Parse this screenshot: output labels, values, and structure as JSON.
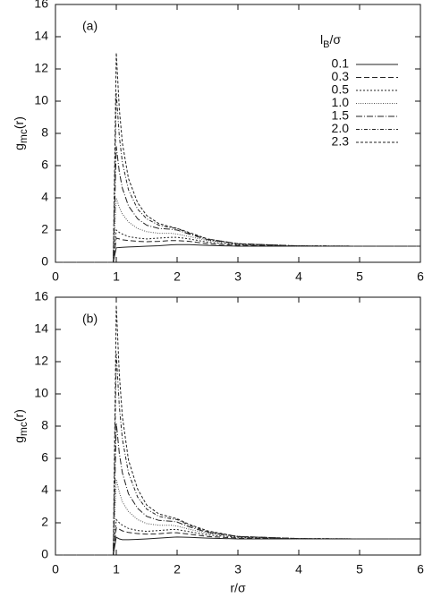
{
  "chart_data": [
    {
      "type": "line",
      "annotation": "(a)",
      "y_label": {
        "base": "g",
        "sub": "mc",
        "rest": "(r)"
      },
      "legend_title": {
        "base": "l",
        "sub": "B",
        "rest": "/σ"
      },
      "legend": "upper right",
      "xlim": [
        0,
        6
      ],
      "ylim": [
        0,
        16
      ],
      "xticks": [
        0,
        1,
        2,
        3,
        4,
        5,
        6
      ],
      "yticks": [
        0,
        2,
        4,
        6,
        8,
        10,
        12,
        14,
        16
      ],
      "x": [
        0,
        0.95,
        1.0,
        1.05,
        1.1,
        1.2,
        1.35,
        1.5,
        1.7,
        1.9,
        2.0,
        2.2,
        2.5,
        3.0,
        4.0,
        5.0,
        6.0
      ],
      "series": [
        {
          "name": "0.1",
          "color": "#222222",
          "dash": "none",
          "values": [
            0,
            0,
            0.9,
            0.92,
            0.93,
            0.95,
            0.97,
            1.0,
            1.03,
            1.08,
            1.1,
            1.1,
            1.05,
            1.0,
            1.0,
            1.0,
            1.0
          ]
        },
        {
          "name": "0.3",
          "color": "#222222",
          "dash": "6,3",
          "values": [
            0,
            0,
            1.5,
            1.45,
            1.4,
            1.35,
            1.3,
            1.28,
            1.3,
            1.35,
            1.35,
            1.3,
            1.15,
            1.05,
            1.0,
            1.0,
            1.0
          ]
        },
        {
          "name": "0.5",
          "color": "#222222",
          "dash": "2,2",
          "values": [
            0,
            0,
            2.0,
            1.85,
            1.75,
            1.6,
            1.5,
            1.45,
            1.5,
            1.55,
            1.55,
            1.45,
            1.25,
            1.1,
            1.0,
            1.0,
            1.0
          ]
        },
        {
          "name": "1.0",
          "color": "#555555",
          "dash": "1,1.5",
          "values": [
            0,
            0,
            4.0,
            3.4,
            3.0,
            2.5,
            2.1,
            1.9,
            1.8,
            1.8,
            1.75,
            1.6,
            1.35,
            1.15,
            1.0,
            1.0,
            1.0
          ]
        },
        {
          "name": "1.5",
          "color": "#222222",
          "dash": "7,2,1,2",
          "values": [
            0,
            0,
            7.2,
            5.6,
            4.6,
            3.5,
            2.7,
            2.3,
            2.1,
            2.05,
            2.0,
            1.75,
            1.4,
            1.15,
            1.02,
            1.0,
            1.0
          ]
        },
        {
          "name": "2.0",
          "color": "#222222",
          "dash": "4,2,1,2",
          "values": [
            0,
            0,
            10.5,
            7.8,
            6.2,
            4.5,
            3.3,
            2.7,
            2.3,
            2.15,
            2.1,
            1.8,
            1.45,
            1.15,
            1.02,
            1.0,
            1.0
          ]
        },
        {
          "name": "2.3",
          "color": "#222222",
          "dash": "3,2",
          "values": [
            0,
            0,
            13.0,
            9.5,
            7.4,
            5.2,
            3.7,
            2.9,
            2.4,
            2.2,
            2.1,
            1.85,
            1.45,
            1.15,
            1.02,
            1.0,
            1.0
          ]
        }
      ]
    },
    {
      "type": "line",
      "annotation": "(b)",
      "y_label": {
        "base": "g",
        "sub": "mc",
        "rest": "(r)"
      },
      "x_label": "r/σ",
      "xlim": [
        0,
        6
      ],
      "ylim": [
        0,
        16
      ],
      "xticks": [
        0,
        1,
        2,
        3,
        4,
        5,
        6
      ],
      "yticks": [
        0,
        2,
        4,
        6,
        8,
        10,
        12,
        14,
        16
      ],
      "x": [
        0,
        0.95,
        1.0,
        1.05,
        1.1,
        1.2,
        1.35,
        1.5,
        1.7,
        1.9,
        2.0,
        2.2,
        2.5,
        3.0,
        4.0,
        5.0,
        6.0
      ],
      "series": [
        {
          "color": "#222222",
          "dash": "none",
          "values": [
            0,
            0,
            1.1,
            1.0,
            0.95,
            0.95,
            0.97,
            1.0,
            1.05,
            1.1,
            1.12,
            1.1,
            1.05,
            1.0,
            1.0,
            1.0,
            1.0
          ]
        },
        {
          "color": "#222222",
          "dash": "6,3",
          "values": [
            0,
            0,
            1.7,
            1.6,
            1.5,
            1.4,
            1.33,
            1.3,
            1.32,
            1.38,
            1.38,
            1.3,
            1.15,
            1.05,
            1.0,
            1.0,
            1.0
          ]
        },
        {
          "color": "#222222",
          "dash": "2,2",
          "values": [
            0,
            0,
            2.2,
            2.0,
            1.85,
            1.65,
            1.52,
            1.47,
            1.52,
            1.58,
            1.58,
            1.45,
            1.25,
            1.1,
            1.0,
            1.0,
            1.0
          ]
        },
        {
          "color": "#555555",
          "dash": "1,1.5",
          "values": [
            0,
            0,
            4.7,
            3.9,
            3.3,
            2.7,
            2.2,
            1.95,
            1.85,
            1.85,
            1.8,
            1.6,
            1.35,
            1.15,
            1.0,
            1.0,
            1.0
          ]
        },
        {
          "color": "#222222",
          "dash": "7,2,1,2",
          "values": [
            0,
            0,
            8.2,
            6.3,
            5.1,
            3.8,
            2.9,
            2.4,
            2.15,
            2.1,
            2.05,
            1.75,
            1.4,
            1.15,
            1.02,
            1.0,
            1.0
          ]
        },
        {
          "color": "#222222",
          "dash": "4,2,1,2",
          "values": [
            0,
            0,
            12.5,
            9.2,
            7.2,
            5.1,
            3.6,
            2.85,
            2.4,
            2.25,
            2.2,
            1.85,
            1.45,
            1.15,
            1.02,
            1.0,
            1.0
          ]
        },
        {
          "color": "#222222",
          "dash": "3,2",
          "values": [
            0,
            0,
            15.5,
            11.2,
            8.6,
            5.9,
            4.1,
            3.1,
            2.55,
            2.35,
            2.25,
            1.9,
            1.5,
            1.15,
            1.02,
            1.0,
            1.0
          ]
        }
      ]
    }
  ]
}
